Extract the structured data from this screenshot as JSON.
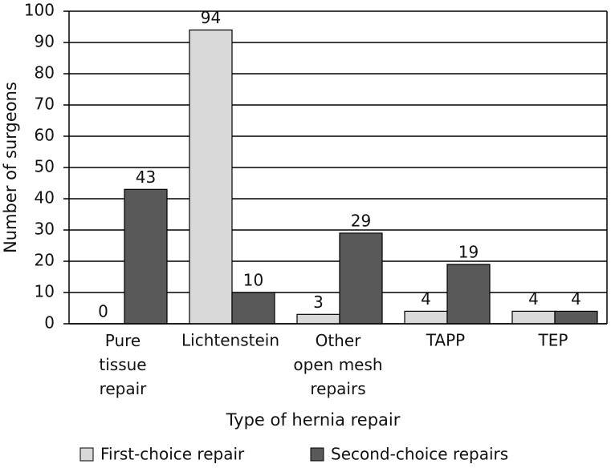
{
  "chart_data": {
    "type": "bar",
    "xlabel": "Type of hernia repair",
    "ylabel": "Number of surgeons",
    "categories": [
      "Pure\ntissue\nrepair",
      "Lichtenstein",
      "Other\nopen mesh\nrepairs",
      "TAPP",
      "TEP"
    ],
    "series": [
      {
        "name": "First-choice repair",
        "color": "#d9d9d9",
        "values": [
          0,
          94,
          3,
          4,
          4
        ]
      },
      {
        "name": "Second-choice repairs",
        "color": "#595959",
        "values": [
          43,
          10,
          29,
          19,
          4
        ]
      }
    ],
    "ylim": [
      0,
      100
    ],
    "yticks": [
      0,
      10,
      20,
      30,
      40,
      50,
      60,
      70,
      80,
      90,
      100
    ],
    "grid": true
  }
}
